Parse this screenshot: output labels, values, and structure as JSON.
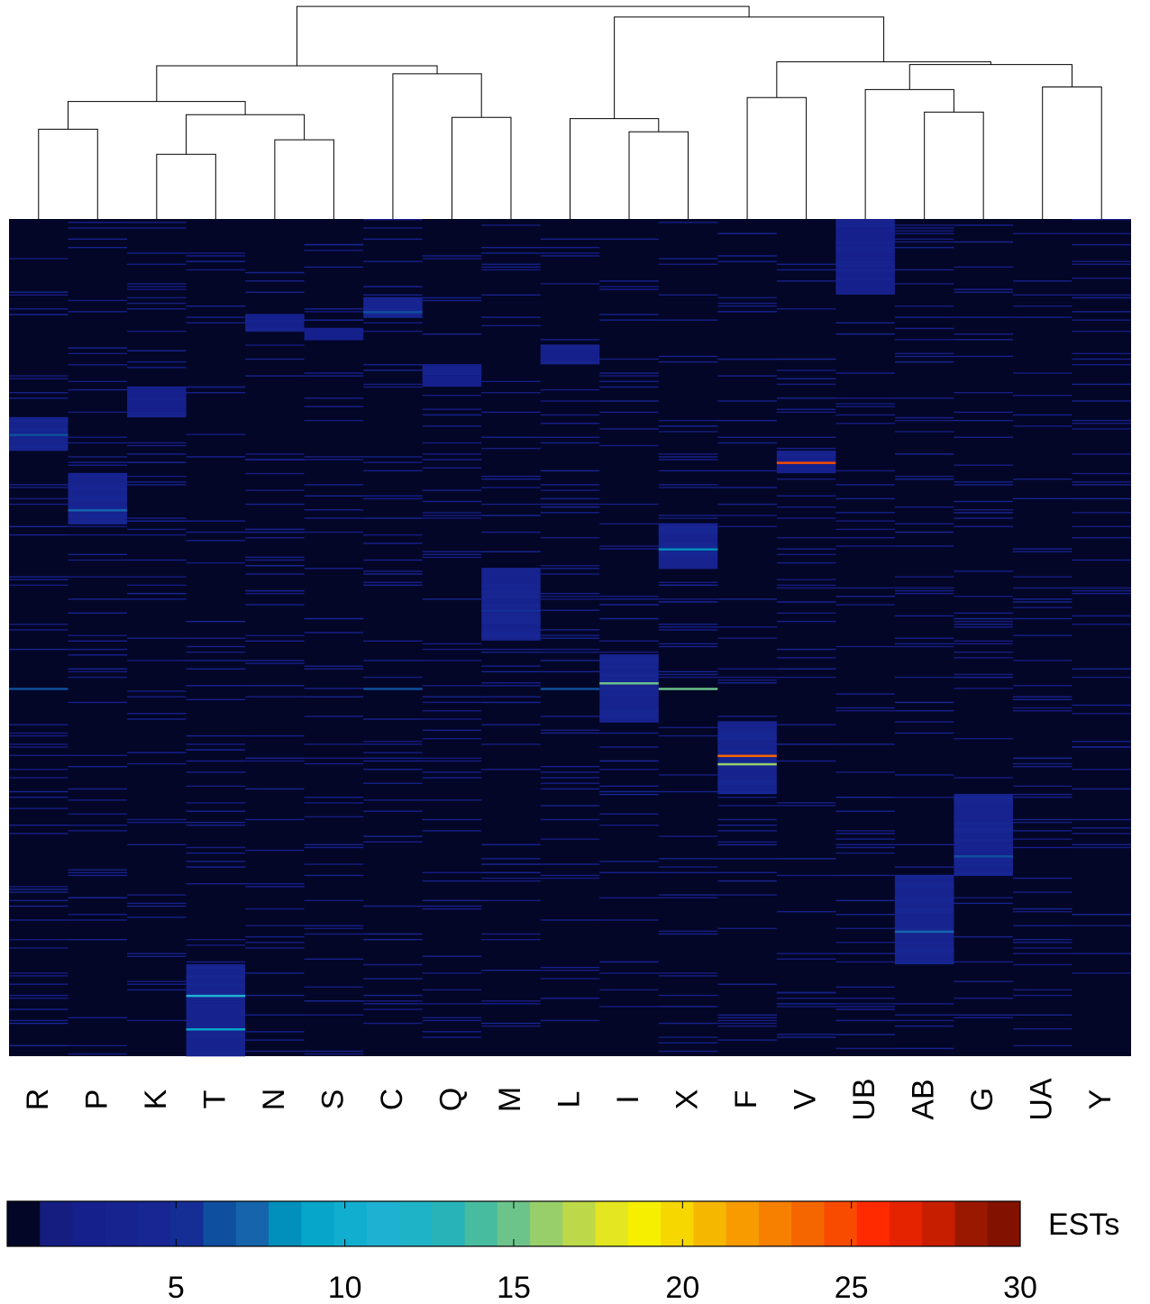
{
  "chart_data": {
    "type": "heatmap",
    "title": "",
    "xlabel": "",
    "ylabel": "",
    "columns": [
      "R",
      "P",
      "K",
      "T",
      "N",
      "S",
      "C",
      "Q",
      "M",
      "L",
      "I",
      "X",
      "F",
      "V",
      "UB",
      "AB",
      "G",
      "UA",
      "Y"
    ],
    "dendrogram": {
      "merges": [
        {
          "left": "R",
          "right": "P",
          "height": 0.68
        },
        {
          "left": "K",
          "right": "T",
          "height": 0.49
        },
        {
          "left": "N",
          "right": "S",
          "height": 0.6
        },
        {
          "left": "K-T",
          "right": "N-S",
          "height": 0.79
        },
        {
          "left": "R-P",
          "right": "K-T-N-S",
          "height": 0.89
        },
        {
          "left": "Q",
          "right": "M",
          "height": 0.77
        },
        {
          "left": "C",
          "right": "Q-M",
          "height": 1.1
        },
        {
          "left": "R-P-K-T-N-S",
          "right": "C-Q-M",
          "height": 1.16
        },
        {
          "left": "I",
          "right": "X",
          "height": 0.66
        },
        {
          "left": "L",
          "right": "I-X",
          "height": 0.76
        },
        {
          "left": "AB",
          "right": "G",
          "height": 0.81
        },
        {
          "left": "UB",
          "right": "AB-G",
          "height": 0.98
        },
        {
          "left": "UA",
          "right": "Y",
          "height": 1.0
        },
        {
          "left": "UB-AB-G",
          "right": "UA-Y",
          "height": 1.17
        },
        {
          "left": "F",
          "right": "V",
          "height": 0.92
        },
        {
          "left": "F-V",
          "right": "UB-AB-G-UA-Y",
          "height": 1.19
        },
        {
          "left": "L-I-X",
          "right": "F-V-UB-AB-G-UA-Y",
          "height": 1.53
        },
        {
          "left": "R-P-K-T-N-S-C-Q-M",
          "right": "L-I-X-F-V-UB-AB-G-UA-Y",
          "height": 1.61
        }
      ]
    },
    "n_rows": 300,
    "background_value": 0,
    "blocks": [
      {
        "column": "UB",
        "row_start": 0,
        "row_end": 27,
        "value": 2
      },
      {
        "column": "C",
        "row_start": 28,
        "row_end": 35,
        "value": 3,
        "peak_row": 33,
        "peak_value": 6
      },
      {
        "column": "N",
        "row_start": 34,
        "row_end": 40,
        "value": 2
      },
      {
        "column": "S",
        "row_start": 39,
        "row_end": 43,
        "value": 2
      },
      {
        "column": "L",
        "row_start": 45,
        "row_end": 52,
        "value": 2
      },
      {
        "column": "Q",
        "row_start": 52,
        "row_end": 60,
        "value": 2
      },
      {
        "column": "K",
        "row_start": 60,
        "row_end": 71,
        "value": 2
      },
      {
        "column": "R",
        "row_start": 71,
        "row_end": 83,
        "value": 3,
        "peak_row": 77,
        "peak_value": 6
      },
      {
        "column": "V",
        "row_start": 83,
        "row_end": 91,
        "value": 2,
        "peak_row": 87,
        "peak_value": 25
      },
      {
        "column": "P",
        "row_start": 91,
        "row_end": 109,
        "value": 3,
        "peak_row": 104,
        "peak_value": 7
      },
      {
        "column": "X",
        "row_start": 109,
        "row_end": 125,
        "value": 3,
        "peak_row": 118,
        "peak_value": 8
      },
      {
        "column": "M",
        "row_start": 125,
        "row_end": 151,
        "value": 3,
        "peak_row": 140,
        "peak_value": 5
      },
      {
        "column": "I",
        "row_start": 156,
        "row_end": 180,
        "value": 3,
        "peak_row": 166,
        "peak_value": 15
      },
      {
        "column": "F",
        "row_start": 180,
        "row_end": 206,
        "value": 3,
        "peak_row": 192,
        "peak_value": 24
      },
      {
        "column": "G",
        "row_start": 206,
        "row_end": 235,
        "value": 3,
        "peak_row": 228,
        "peak_value": 6
      },
      {
        "column": "AB",
        "row_start": 235,
        "row_end": 267,
        "value": 3,
        "peak_row": 255,
        "peak_value": 7
      },
      {
        "column": "T",
        "row_start": 267,
        "row_end": 300,
        "value": 3,
        "peak_row": 278,
        "peak_value": 11
      }
    ],
    "highlighted_rows": [
      {
        "row": 168,
        "columns": [
          "X"
        ],
        "value": 15
      },
      {
        "row": 168,
        "columns": [
          "R",
          "C",
          "L"
        ],
        "value": 6
      },
      {
        "row": 195,
        "columns": [
          "F"
        ],
        "value": 16
      },
      {
        "row": 290,
        "columns": [
          "T"
        ],
        "value": 9
      }
    ],
    "colorbar": {
      "label": "ESTs",
      "range": [
        0,
        30
      ],
      "ticks": [
        5,
        10,
        15,
        20,
        25,
        30
      ],
      "colors": [
        "#030626",
        "#161d80",
        "#16208c",
        "#17238e",
        "#172693",
        "#152e96",
        "#0f4f9f",
        "#1665ac",
        "#0090bb",
        "#05a6c9",
        "#12aed0",
        "#1fb1d2",
        "#1fb3c8",
        "#28b3b8",
        "#48bc9e",
        "#6cc48b",
        "#98cf6a",
        "#bdd94a",
        "#e3e620",
        "#f6f000",
        "#f6d800",
        "#f6b700",
        "#f79b00",
        "#f78000",
        "#f66600",
        "#f84b00",
        "#ff2a00",
        "#e52300",
        "#c71e00",
        "#9a1800",
        "#821100"
      ]
    }
  }
}
